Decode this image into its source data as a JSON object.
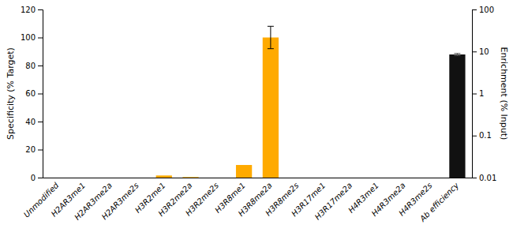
{
  "chart_data": {
    "type": "bar",
    "categories": [
      "Unmodified",
      "H2AR3me1",
      "H2AR3me2a",
      "H2AR3me2s",
      "H3R2me1",
      "H3R2me2a",
      "H3R2me2s",
      "H3R8me1",
      "H3R8me2a",
      "H3R8me2s",
      "H3R17me1",
      "H3R17me2a",
      "H4R3me1",
      "H4R3me2a",
      "H4R3me2s",
      "Ab efficiency"
    ],
    "series": [
      {
        "color": "#FFAA00",
        "values": [
          0,
          0,
          0,
          0,
          1.5,
          0.4,
          0,
          9.0,
          100,
          0,
          0,
          0,
          0,
          0,
          0,
          null
        ],
        "errors": [
          0,
          0,
          0,
          0,
          0,
          0,
          0,
          0,
          8.0,
          0,
          0,
          0,
          0,
          0,
          0,
          null
        ]
      },
      {
        "color": "#111111",
        "axis": "y2",
        "values": [
          null,
          null,
          null,
          null,
          null,
          null,
          null,
          null,
          null,
          null,
          null,
          null,
          null,
          null,
          null,
          8.5
        ],
        "errors": [
          null,
          null,
          null,
          null,
          null,
          null,
          null,
          null,
          null,
          null,
          null,
          null,
          null,
          null,
          null,
          0.5
        ]
      }
    ],
    "ylabel": "Specificity (% Target)",
    "y2label": "Enrichment (% Input)",
    "ylim": [
      0,
      120
    ],
    "yticks": [
      0,
      20,
      40,
      60,
      80,
      100,
      120
    ],
    "y2lim": [
      0.01,
      100
    ],
    "y2ticks": [
      0.01,
      0.1,
      1,
      10,
      100
    ],
    "log": "y2",
    "grid": false
  }
}
